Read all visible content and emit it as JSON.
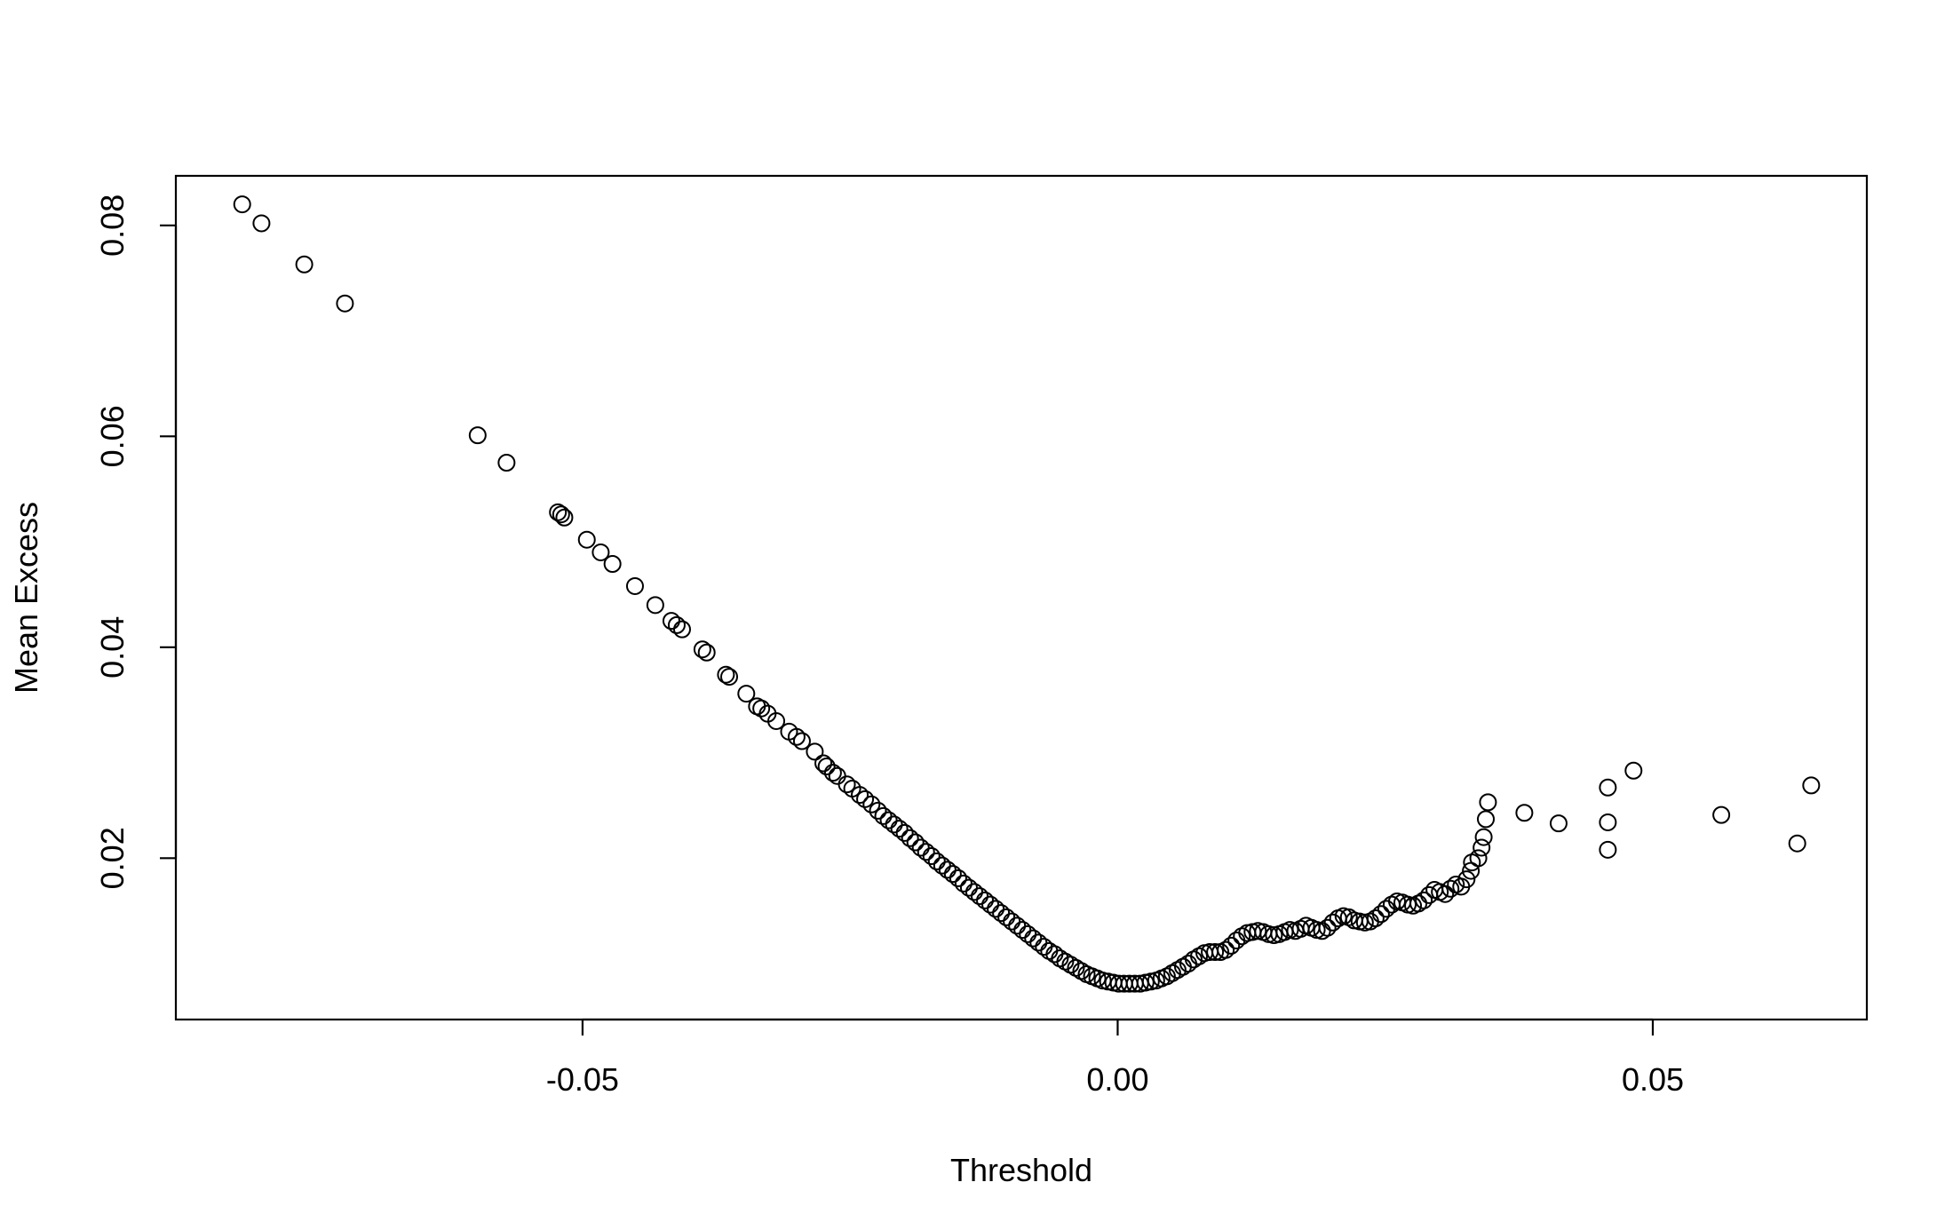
{
  "chart_data": {
    "type": "scatter",
    "title": "",
    "xlabel": "Threshold",
    "ylabel": "Mean Excess",
    "xlim": [
      -0.088,
      0.07
    ],
    "ylim": [
      0.0047,
      0.0847
    ],
    "x_ticks": [
      -0.05,
      0.0,
      0.05
    ],
    "x_tick_labels": [
      "-0.05",
      "0.00",
      "0.05"
    ],
    "y_ticks": [
      0.02,
      0.04,
      0.06,
      0.08
    ],
    "y_tick_labels": [
      "0.02",
      "0.04",
      "0.06",
      "0.08"
    ],
    "grid": false,
    "legend": "none",
    "marker": "open-circle",
    "colors": {
      "marker": "#000000",
      "axis": "#000000",
      "background": "#ffffff"
    },
    "points": [
      [
        -0.0818,
        0.082
      ],
      [
        -0.08,
        0.0802
      ],
      [
        -0.076,
        0.0763
      ],
      [
        -0.0722,
        0.0726
      ],
      [
        -0.0598,
        0.0601
      ],
      [
        -0.0571,
        0.0575
      ],
      [
        -0.0523,
        0.0528
      ],
      [
        -0.052,
        0.0526
      ],
      [
        -0.0517,
        0.0523
      ],
      [
        -0.0496,
        0.0502
      ],
      [
        -0.0483,
        0.049
      ],
      [
        -0.0472,
        0.0479
      ],
      [
        -0.0451,
        0.0458
      ],
      [
        -0.0432,
        0.044
      ],
      [
        -0.0417,
        0.0425
      ],
      [
        -0.0412,
        0.0421
      ],
      [
        -0.0407,
        0.0417
      ],
      [
        -0.0388,
        0.0398
      ],
      [
        -0.0384,
        0.0395
      ],
      [
        -0.0366,
        0.0374
      ],
      [
        -0.0363,
        0.0372
      ],
      [
        -0.0347,
        0.0356
      ],
      [
        -0.0337,
        0.0344
      ],
      [
        -0.0333,
        0.0342
      ],
      [
        -0.0327,
        0.0337
      ],
      [
        -0.0319,
        0.033
      ],
      [
        -0.0307,
        0.032
      ],
      [
        -0.03,
        0.0315
      ],
      [
        -0.0295,
        0.0311
      ],
      [
        -0.0283,
        0.0301
      ],
      [
        -0.0275,
        0.029
      ],
      [
        -0.0272,
        0.0287
      ],
      [
        -0.0266,
        0.0281
      ],
      [
        -0.0262,
        0.0278
      ],
      [
        -0.0253,
        0.027
      ],
      [
        -0.0248,
        0.0266
      ],
      [
        -0.0241,
        0.026
      ],
      [
        -0.0236,
        0.0256
      ],
      [
        -0.023,
        0.0251
      ],
      [
        -0.0224,
        0.0245
      ],
      [
        -0.0219,
        0.024
      ],
      [
        -0.0214,
        0.0236
      ],
      [
        -0.0209,
        0.0232
      ],
      [
        -0.0204,
        0.0228
      ],
      [
        -0.0199,
        0.0224
      ],
      [
        -0.0194,
        0.0219
      ],
      [
        -0.0189,
        0.0215
      ],
      [
        -0.0184,
        0.021
      ],
      [
        -0.0179,
        0.0206
      ],
      [
        -0.0174,
        0.0202
      ],
      [
        -0.0169,
        0.0197
      ],
      [
        -0.0164,
        0.0193
      ],
      [
        -0.0159,
        0.0189
      ],
      [
        -0.0154,
        0.0185
      ],
      [
        -0.0149,
        0.0181
      ],
      [
        -0.0144,
        0.0176
      ],
      [
        -0.0139,
        0.0172
      ],
      [
        -0.0134,
        0.0168
      ],
      [
        -0.0129,
        0.0164
      ],
      [
        -0.0124,
        0.016
      ],
      [
        -0.0119,
        0.0156
      ],
      [
        -0.0114,
        0.0152
      ],
      [
        -0.0109,
        0.0148
      ],
      [
        -0.0104,
        0.0144
      ],
      [
        -0.0099,
        0.014
      ],
      [
        -0.0094,
        0.0136
      ],
      [
        -0.0089,
        0.0132
      ],
      [
        -0.0084,
        0.0128
      ],
      [
        -0.0079,
        0.0124
      ],
      [
        -0.0074,
        0.012
      ],
      [
        -0.0069,
        0.0116
      ],
      [
        -0.0064,
        0.0112
      ],
      [
        -0.0059,
        0.0109
      ],
      [
        -0.0054,
        0.0105
      ],
      [
        -0.0049,
        0.0102
      ],
      [
        -0.0044,
        0.0099
      ],
      [
        -0.0039,
        0.0096
      ],
      [
        -0.0034,
        0.0093
      ],
      [
        -0.0029,
        0.009
      ],
      [
        -0.0024,
        0.0088
      ],
      [
        -0.0019,
        0.0086
      ],
      [
        -0.0014,
        0.0084
      ],
      [
        -0.0009,
        0.0083
      ],
      [
        -0.0004,
        0.0082
      ],
      [
        0.0001,
        0.0081
      ],
      [
        0.0006,
        0.0081
      ],
      [
        0.0011,
        0.0081
      ],
      [
        0.0016,
        0.0081
      ],
      [
        0.0021,
        0.0081
      ],
      [
        0.0026,
        0.0082
      ],
      [
        0.0031,
        0.0083
      ],
      [
        0.0036,
        0.0084
      ],
      [
        0.0041,
        0.0086
      ],
      [
        0.0046,
        0.0088
      ],
      [
        0.0051,
        0.0091
      ],
      [
        0.0056,
        0.0094
      ],
      [
        0.0061,
        0.0097
      ],
      [
        0.0066,
        0.01
      ],
      [
        0.0071,
        0.0104
      ],
      [
        0.0076,
        0.0107
      ],
      [
        0.0081,
        0.011
      ],
      [
        0.0086,
        0.0111
      ],
      [
        0.0091,
        0.0111
      ],
      [
        0.0096,
        0.0111
      ],
      [
        0.0101,
        0.0113
      ],
      [
        0.0106,
        0.0117
      ],
      [
        0.0111,
        0.0122
      ],
      [
        0.0116,
        0.0126
      ],
      [
        0.0121,
        0.0129
      ],
      [
        0.0126,
        0.013
      ],
      [
        0.0131,
        0.0131
      ],
      [
        0.0136,
        0.013
      ],
      [
        0.0141,
        0.0128
      ],
      [
        0.0146,
        0.0127
      ],
      [
        0.0151,
        0.0128
      ],
      [
        0.0156,
        0.013
      ],
      [
        0.0161,
        0.0132
      ],
      [
        0.0166,
        0.0131
      ],
      [
        0.0171,
        0.0133
      ],
      [
        0.0176,
        0.0136
      ],
      [
        0.0181,
        0.0134
      ],
      [
        0.0186,
        0.0132
      ],
      [
        0.0191,
        0.0131
      ],
      [
        0.0196,
        0.0134
      ],
      [
        0.0201,
        0.0139
      ],
      [
        0.0206,
        0.0143
      ],
      [
        0.0211,
        0.0145
      ],
      [
        0.0216,
        0.0144
      ],
      [
        0.0221,
        0.0141
      ],
      [
        0.0226,
        0.014
      ],
      [
        0.0231,
        0.0139
      ],
      [
        0.0236,
        0.014
      ],
      [
        0.0241,
        0.0143
      ],
      [
        0.0246,
        0.0147
      ],
      [
        0.0251,
        0.0152
      ],
      [
        0.0256,
        0.0156
      ],
      [
        0.0261,
        0.0159
      ],
      [
        0.0266,
        0.0158
      ],
      [
        0.0271,
        0.0156
      ],
      [
        0.0276,
        0.0155
      ],
      [
        0.0281,
        0.0157
      ],
      [
        0.0286,
        0.016
      ],
      [
        0.0291,
        0.0165
      ],
      [
        0.0296,
        0.017
      ],
      [
        0.0301,
        0.0168
      ],
      [
        0.0306,
        0.0166
      ],
      [
        0.0311,
        0.0171
      ],
      [
        0.0316,
        0.0175
      ],
      [
        0.0321,
        0.0173
      ],
      [
        0.0326,
        0.018
      ],
      [
        0.033,
        0.0188
      ],
      [
        0.0331,
        0.0196
      ],
      [
        0.0337,
        0.02
      ],
      [
        0.034,
        0.021
      ],
      [
        0.0342,
        0.022
      ],
      [
        0.0344,
        0.0237
      ],
      [
        0.0346,
        0.0253
      ],
      [
        0.038,
        0.0243
      ],
      [
        0.0412,
        0.0233
      ],
      [
        0.0458,
        0.0267
      ],
      [
        0.0458,
        0.0234
      ],
      [
        0.0458,
        0.0208
      ],
      [
        0.0482,
        0.0283
      ],
      [
        0.0564,
        0.0241
      ],
      [
        0.0635,
        0.0214
      ],
      [
        0.0648,
        0.0269
      ]
    ]
  }
}
